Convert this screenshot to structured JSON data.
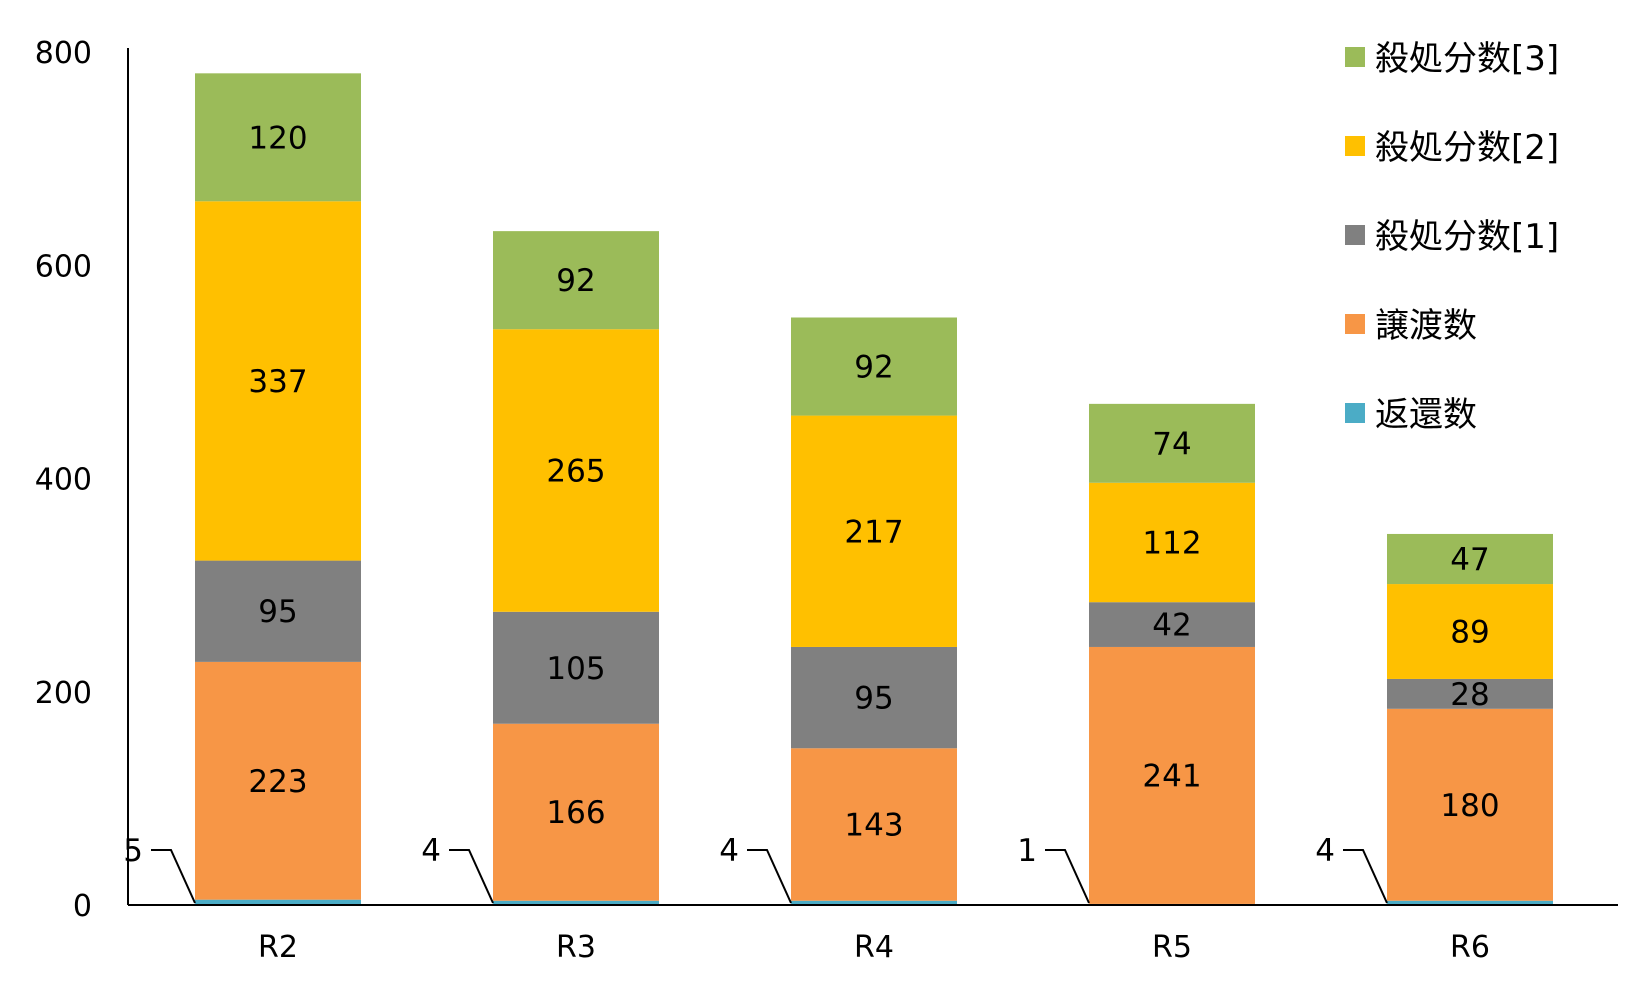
{
  "chart_data": {
    "type": "bar",
    "stacked": true,
    "categories": [
      "R2",
      "R3",
      "R4",
      "R5",
      "R6"
    ],
    "ylim": [
      0,
      800
    ],
    "yticks": [
      0,
      200,
      400,
      600,
      800
    ],
    "grid": false,
    "legend_position": "top-right",
    "series": [
      {
        "name": "返還数",
        "color": "#4bacc6",
        "values": [
          5,
          4,
          4,
          1,
          4
        ]
      },
      {
        "name": "譲渡数",
        "color": "#f79646",
        "values": [
          223,
          166,
          143,
          241,
          180
        ]
      },
      {
        "name": "殺処分数[1]",
        "color": "#808080",
        "values": [
          95,
          105,
          95,
          42,
          28
        ]
      },
      {
        "name": "殺処分数[2]",
        "color": "#ffc000",
        "values": [
          337,
          265,
          217,
          112,
          89
        ]
      },
      {
        "name": "殺処分数[3]",
        "color": "#9bbb59",
        "values": [
          120,
          92,
          92,
          74,
          47
        ]
      }
    ],
    "legend_order": [
      "殺処分数[3]",
      "殺処分数[2]",
      "殺処分数[1]",
      "譲渡数",
      "返還数"
    ]
  }
}
